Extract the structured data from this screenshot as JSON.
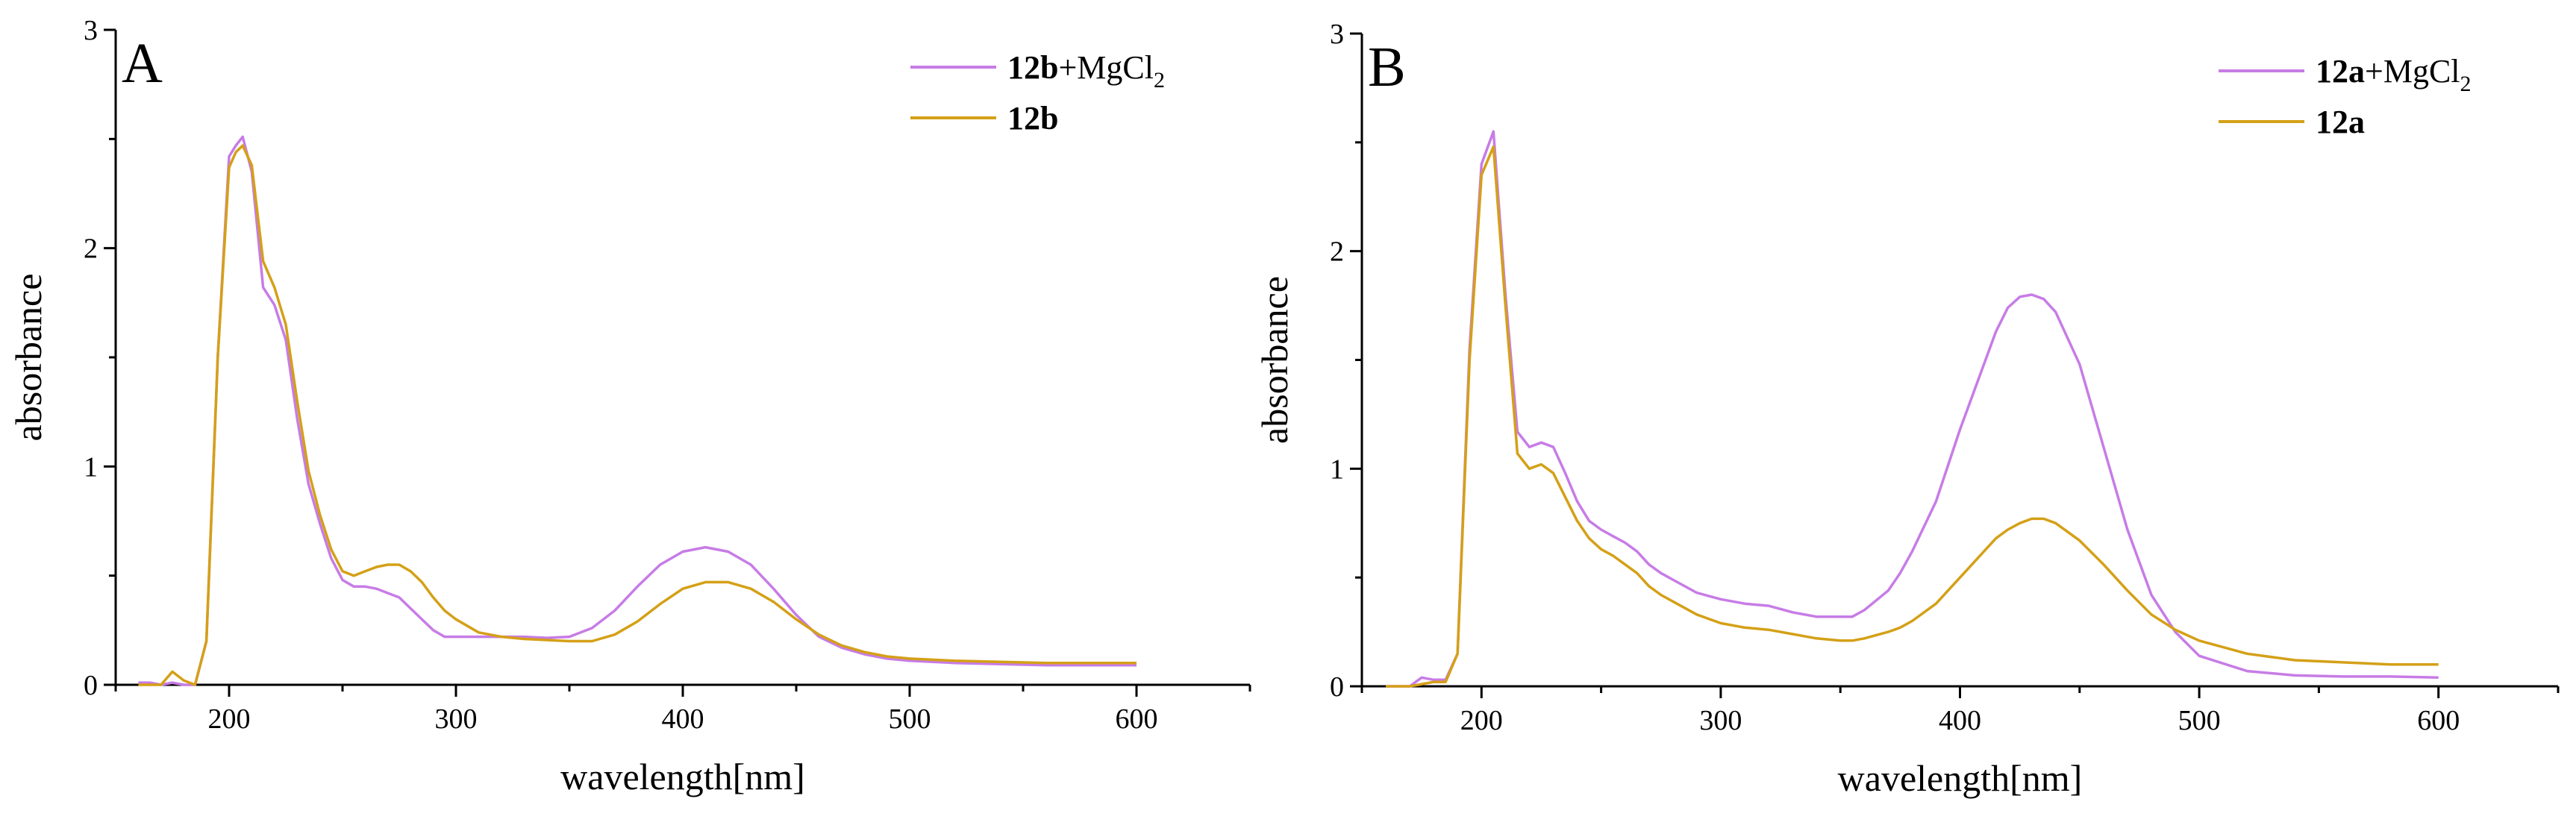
{
  "chart_data": [
    {
      "panel": "A",
      "type": "line",
      "xlabel": "wavelength[nm]",
      "ylabel": "absorbance",
      "xlim": [
        150,
        650
      ],
      "ylim": [
        0,
        3
      ],
      "xticks": [
        200,
        300,
        400,
        500,
        600
      ],
      "xtick_labels": [
        "200",
        "300",
        "400",
        "500",
        "600"
      ],
      "yticks": [
        0,
        1,
        2,
        3
      ],
      "ytick_labels": [
        "0",
        "1",
        "2",
        "3"
      ],
      "grid": false,
      "legend": "top-right",
      "series": [
        {
          "name": "12b+MgCl2",
          "label_bold": "12b",
          "label_rest": "+MgCl",
          "label_sub": "2",
          "color": "#C77CE6",
          "x": [
            160,
            165,
            170,
            175,
            180,
            185,
            190,
            195,
            200,
            203,
            206,
            210,
            215,
            220,
            225,
            230,
            235,
            240,
            245,
            250,
            255,
            260,
            265,
            270,
            275,
            280,
            285,
            290,
            295,
            300,
            310,
            320,
            330,
            340,
            350,
            360,
            370,
            380,
            390,
            400,
            410,
            420,
            430,
            440,
            450,
            460,
            470,
            480,
            490,
            500,
            520,
            540,
            560,
            580,
            600
          ],
          "y": [
            0.01,
            0.01,
            0.0,
            0.01,
            0.0,
            0.0,
            0.2,
            1.5,
            2.42,
            2.47,
            2.51,
            2.35,
            1.82,
            1.74,
            1.58,
            1.22,
            0.92,
            0.74,
            0.58,
            0.48,
            0.45,
            0.45,
            0.44,
            0.42,
            0.4,
            0.35,
            0.3,
            0.25,
            0.22,
            0.22,
            0.22,
            0.22,
            0.22,
            0.215,
            0.22,
            0.26,
            0.34,
            0.45,
            0.55,
            0.61,
            0.63,
            0.61,
            0.55,
            0.44,
            0.32,
            0.22,
            0.17,
            0.14,
            0.12,
            0.11,
            0.1,
            0.095,
            0.09,
            0.09,
            0.09
          ]
        },
        {
          "name": "12b",
          "label_bold": "12b",
          "label_rest": "",
          "label_sub": "",
          "color": "#D4A017",
          "x": [
            160,
            165,
            170,
            175,
            180,
            185,
            190,
            195,
            200,
            203,
            206,
            210,
            215,
            220,
            225,
            230,
            235,
            240,
            245,
            250,
            255,
            260,
            265,
            270,
            275,
            280,
            285,
            290,
            295,
            300,
            310,
            320,
            330,
            340,
            350,
            360,
            370,
            380,
            390,
            400,
            410,
            420,
            430,
            440,
            450,
            460,
            470,
            480,
            490,
            500,
            520,
            540,
            560,
            580,
            600
          ],
          "y": [
            0.0,
            0.0,
            0.0,
            0.06,
            0.02,
            0.0,
            0.2,
            1.5,
            2.37,
            2.44,
            2.47,
            2.38,
            1.94,
            1.82,
            1.65,
            1.3,
            0.98,
            0.78,
            0.62,
            0.52,
            0.5,
            0.52,
            0.54,
            0.55,
            0.55,
            0.52,
            0.47,
            0.4,
            0.34,
            0.3,
            0.24,
            0.22,
            0.21,
            0.205,
            0.2,
            0.2,
            0.23,
            0.29,
            0.37,
            0.44,
            0.47,
            0.47,
            0.44,
            0.38,
            0.3,
            0.23,
            0.18,
            0.15,
            0.13,
            0.12,
            0.11,
            0.105,
            0.1,
            0.1,
            0.1
          ]
        }
      ]
    },
    {
      "panel": "B",
      "type": "line",
      "xlabel": "wavelength[nm]",
      "ylabel": "absorbance",
      "xlim": [
        150,
        650
      ],
      "ylim": [
        0,
        3
      ],
      "xticks": [
        200,
        300,
        400,
        500,
        600
      ],
      "xtick_labels": [
        "200",
        "300",
        "400",
        "500",
        "600"
      ],
      "yticks": [
        0,
        1,
        2,
        3
      ],
      "ytick_labels": [
        "0",
        "1",
        "2",
        "3"
      ],
      "grid": false,
      "legend": "top-right",
      "series": [
        {
          "name": "12a+MgCl2",
          "label_bold": "12a",
          "label_rest": "+MgCl",
          "label_sub": "2",
          "color": "#C77CE6",
          "x": [
            160,
            165,
            170,
            175,
            180,
            185,
            190,
            195,
            200,
            205,
            210,
            215,
            220,
            225,
            230,
            235,
            240,
            245,
            250,
            255,
            260,
            265,
            270,
            275,
            280,
            290,
            300,
            310,
            320,
            330,
            340,
            350,
            355,
            360,
            370,
            375,
            380,
            390,
            400,
            410,
            415,
            420,
            425,
            430,
            435,
            440,
            450,
            460,
            470,
            480,
            490,
            500,
            520,
            540,
            560,
            580,
            600
          ],
          "y": [
            0.0,
            0.0,
            0.0,
            0.04,
            0.03,
            0.03,
            0.15,
            1.55,
            2.4,
            2.55,
            1.8,
            1.17,
            1.1,
            1.12,
            1.1,
            0.98,
            0.85,
            0.76,
            0.72,
            0.69,
            0.66,
            0.62,
            0.56,
            0.52,
            0.49,
            0.43,
            0.4,
            0.38,
            0.37,
            0.34,
            0.32,
            0.32,
            0.32,
            0.35,
            0.44,
            0.52,
            0.62,
            0.85,
            1.18,
            1.48,
            1.63,
            1.74,
            1.79,
            1.8,
            1.78,
            1.72,
            1.48,
            1.1,
            0.72,
            0.42,
            0.25,
            0.14,
            0.07,
            0.05,
            0.045,
            0.045,
            0.04
          ]
        },
        {
          "name": "12a",
          "label_bold": "12a",
          "label_rest": "",
          "label_sub": "",
          "color": "#D4A017",
          "x": [
            160,
            165,
            170,
            175,
            180,
            185,
            190,
            195,
            200,
            205,
            210,
            215,
            220,
            225,
            230,
            235,
            240,
            245,
            250,
            255,
            260,
            265,
            270,
            275,
            280,
            290,
            300,
            310,
            320,
            330,
            340,
            350,
            355,
            360,
            370,
            375,
            380,
            390,
            400,
            410,
            415,
            420,
            425,
            430,
            435,
            440,
            450,
            460,
            470,
            480,
            490,
            500,
            520,
            540,
            560,
            580,
            600
          ],
          "y": [
            0.0,
            0.0,
            0.0,
            0.01,
            0.02,
            0.02,
            0.15,
            1.5,
            2.35,
            2.48,
            1.75,
            1.07,
            1.0,
            1.02,
            0.98,
            0.87,
            0.76,
            0.68,
            0.63,
            0.6,
            0.56,
            0.52,
            0.46,
            0.42,
            0.39,
            0.33,
            0.29,
            0.27,
            0.26,
            0.24,
            0.22,
            0.21,
            0.21,
            0.22,
            0.25,
            0.27,
            0.3,
            0.38,
            0.5,
            0.62,
            0.68,
            0.72,
            0.75,
            0.77,
            0.77,
            0.75,
            0.67,
            0.56,
            0.44,
            0.33,
            0.26,
            0.21,
            0.15,
            0.12,
            0.11,
            0.1,
            0.1
          ]
        }
      ]
    }
  ]
}
